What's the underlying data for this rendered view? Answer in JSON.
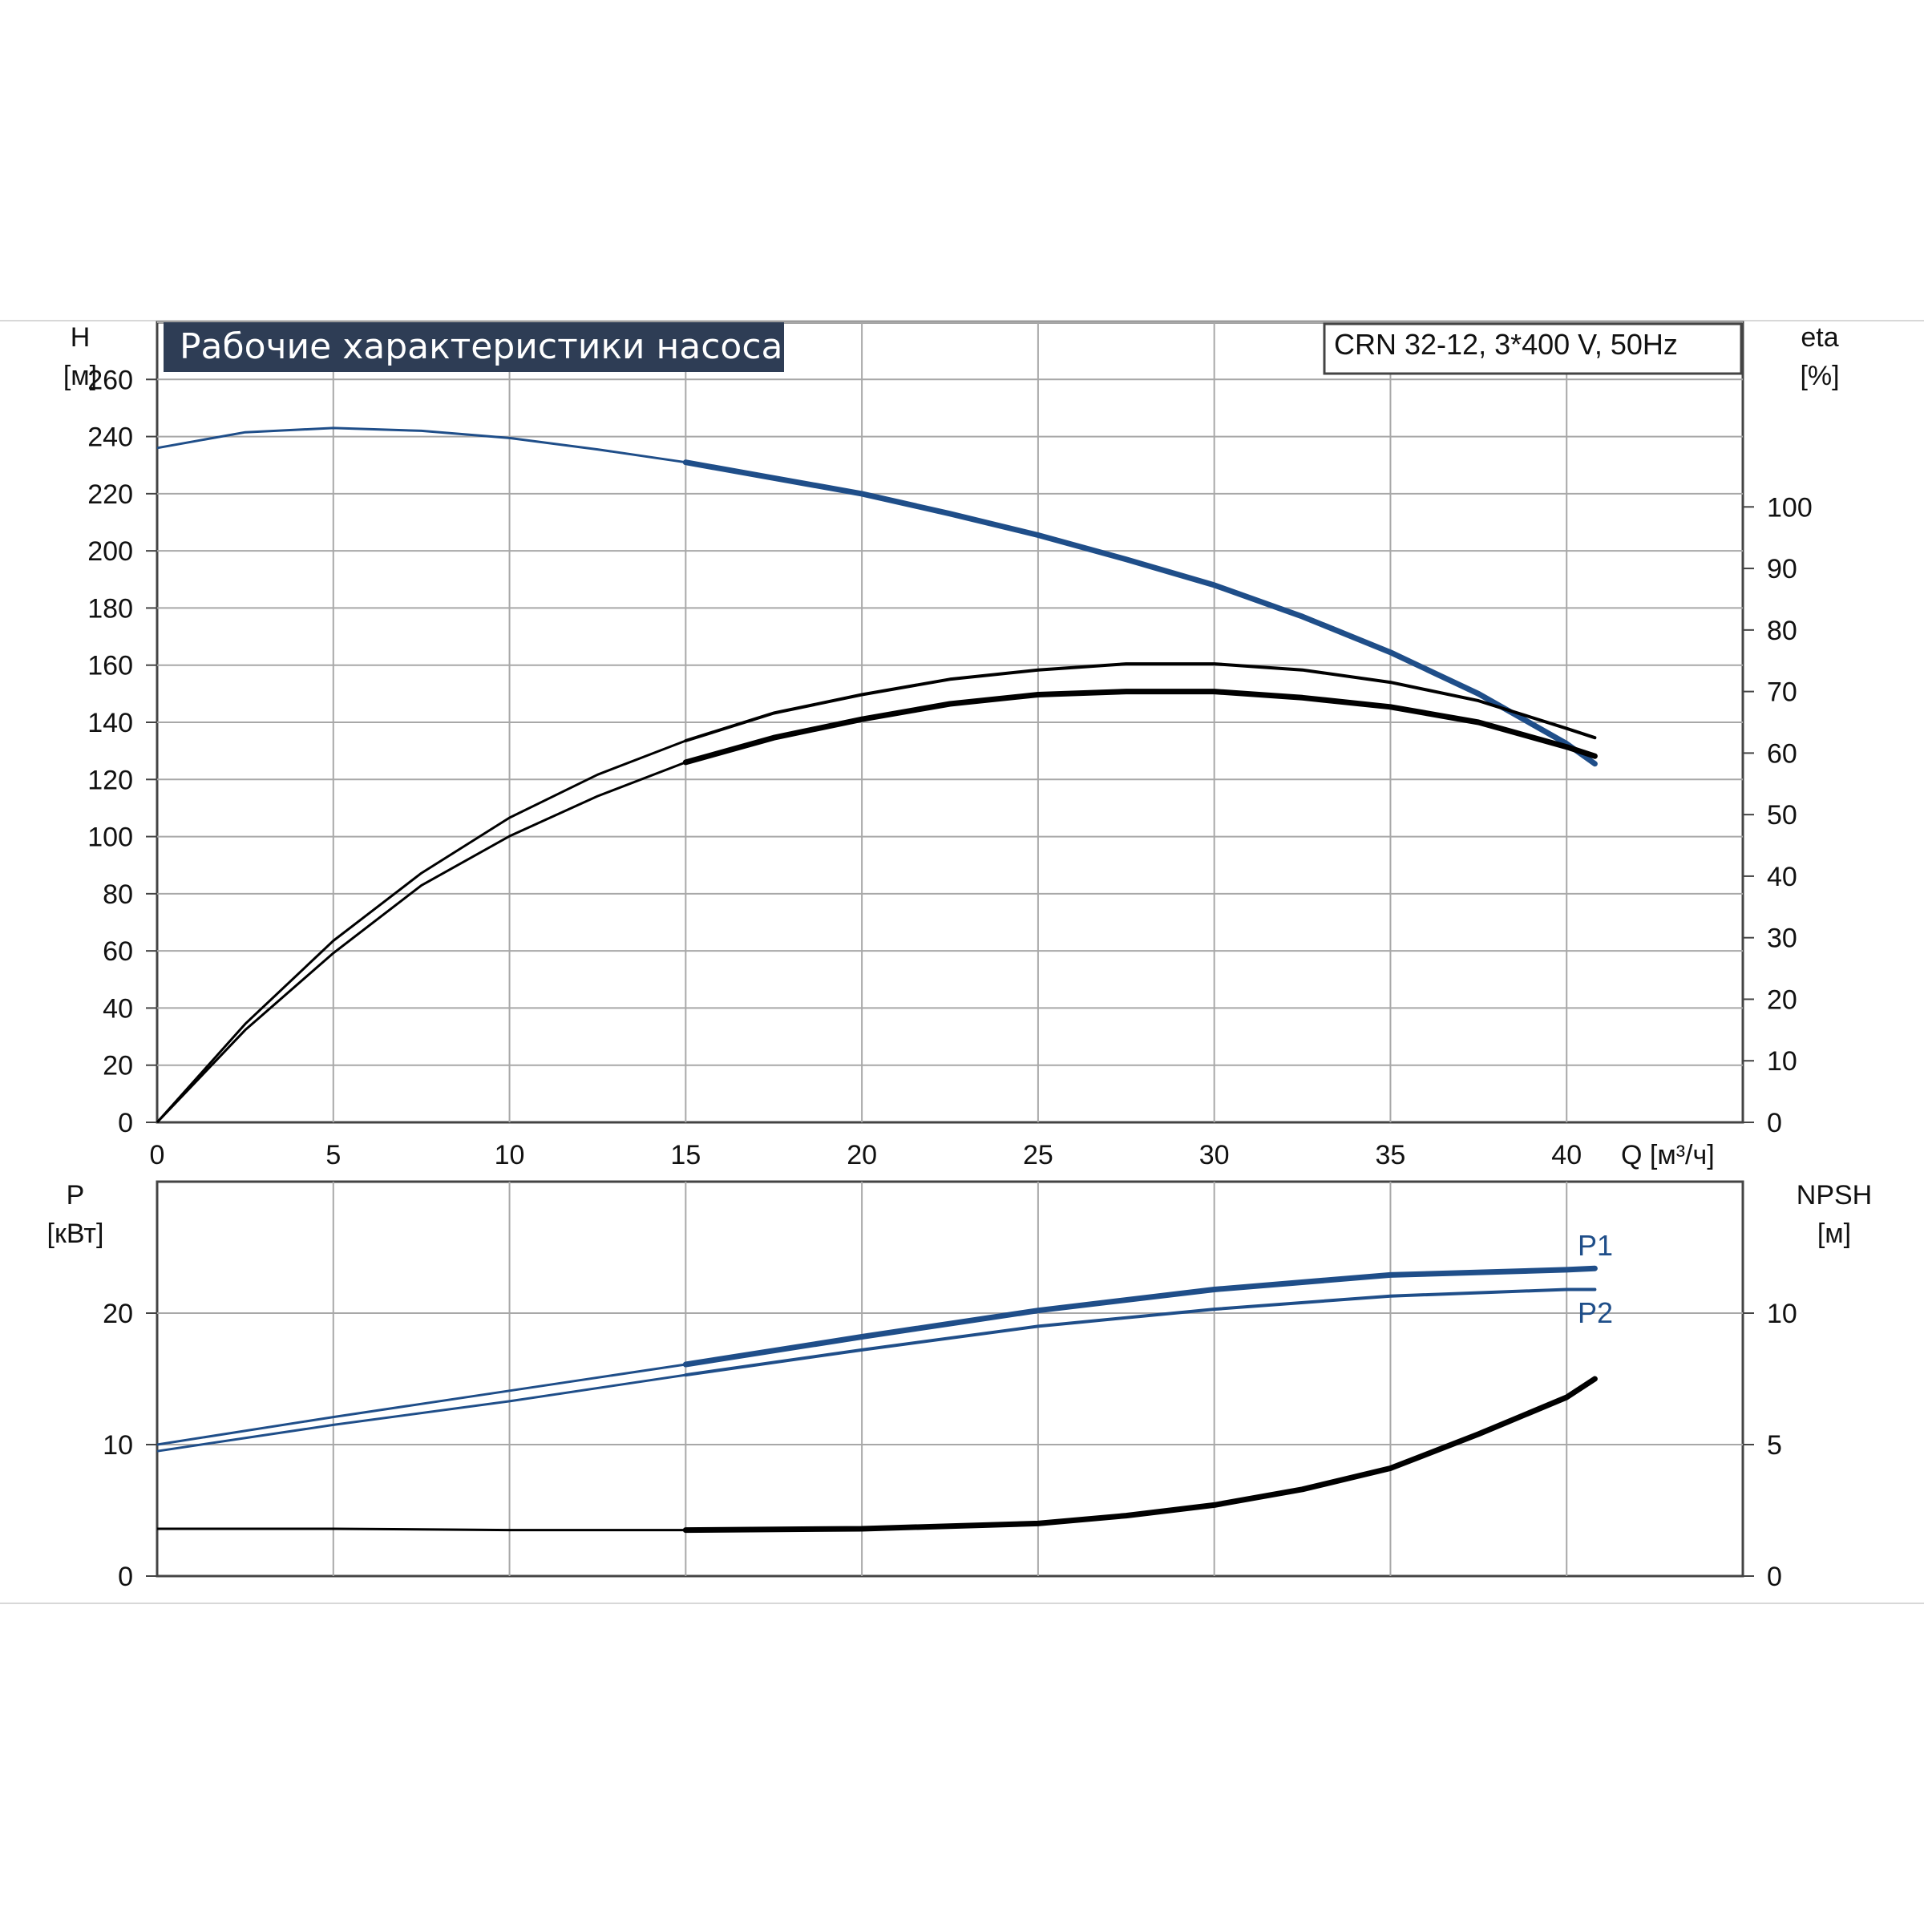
{
  "chart_data": [
    {
      "type": "line",
      "title": "Рабочие характеристики насоса",
      "subtitle": "CRN 32-12, 3*400 V, 50Hz",
      "xlabel": "Q [м³/ч]",
      "ylabel_line1": "H",
      "ylabel_line2": "[м]",
      "y2label_line1": "eta",
      "y2label_line2": "[%]",
      "xlim": [
        0,
        45
      ],
      "ylim": [
        0,
        280
      ],
      "y2lim": [
        0,
        130
      ],
      "grid": true,
      "x_ticks": [
        "0",
        "5",
        "10",
        "15",
        "20",
        "25",
        "30",
        "35",
        "40"
      ],
      "y_ticks": [
        "0",
        "20",
        "40",
        "60",
        "80",
        "100",
        "120",
        "140",
        "160",
        "180",
        "200",
        "220",
        "240",
        "260"
      ],
      "y2_ticks": [
        "0",
        "10",
        "20",
        "30",
        "40",
        "50",
        "60",
        "70",
        "80",
        "90",
        "100"
      ],
      "colors": {
        "head": "#1f4e89",
        "eta": "#000000"
      },
      "series": [
        {
          "axis": "left",
          "color": "#1f4e89",
          "x": [
            0,
            2.5,
            5,
            7.5,
            10,
            12.5,
            15,
            17.5,
            20,
            22.5,
            25,
            27.5,
            30,
            32.5,
            35,
            37.5,
            40,
            40.8
          ],
          "y": [
            236,
            241.5,
            243,
            242,
            239.5,
            235.5,
            231,
            225.5,
            220,
            213,
            205.5,
            197,
            188,
            177,
            164.5,
            150,
            132.5,
            125.5
          ]
        },
        {
          "axis": "right",
          "color": "#000000",
          "x": [
            0,
            2.5,
            5,
            7.5,
            10,
            12.5,
            15,
            17.5,
            20,
            22.5,
            25,
            27.5,
            30,
            32.5,
            35,
            37.5,
            40,
            40.8
          ],
          "y": [
            0,
            16,
            29.5,
            40.5,
            49.5,
            56.5,
            62,
            66.5,
            69.5,
            72,
            73.5,
            74.5,
            74.5,
            73.5,
            71.5,
            68.5,
            64,
            62.5
          ]
        },
        {
          "axis": "right",
          "color": "#000000",
          "x": [
            0,
            2.5,
            5,
            7.5,
            10,
            12.5,
            15,
            17.5,
            20,
            22.5,
            25,
            27.5,
            30,
            32.5,
            35,
            37.5,
            40,
            40.8
          ],
          "y": [
            0,
            15,
            27.5,
            38.5,
            46.5,
            53,
            58.5,
            62.5,
            65.5,
            68,
            69.5,
            70,
            70,
            69,
            67.5,
            65,
            61,
            59.5
          ]
        }
      ]
    },
    {
      "type": "line",
      "ylabel_line1": "P",
      "ylabel_line2": "[кВт]",
      "y2label_line1": "NPSH",
      "y2label_line2": "[м]",
      "xlim": [
        0,
        45
      ],
      "ylim": [
        0,
        30
      ],
      "y2lim": [
        0,
        15
      ],
      "grid": true,
      "y_ticks": [
        "0",
        "10",
        "20"
      ],
      "y2_ticks": [
        "0",
        "5",
        "10"
      ],
      "colors": {
        "power": "#1f4e89",
        "npsh": "#000000"
      },
      "series": [
        {
          "name": "P1",
          "axis": "left",
          "color": "#1f4e89",
          "x": [
            0,
            5,
            10,
            15,
            20,
            25,
            30,
            35,
            40,
            40.8
          ],
          "y": [
            10,
            12.1,
            14.1,
            16.1,
            18.2,
            20.2,
            21.8,
            22.9,
            23.3,
            23.4
          ]
        },
        {
          "name": "P2",
          "axis": "left",
          "color": "#1f4e89",
          "x": [
            0,
            5,
            10,
            15,
            20,
            25,
            30,
            35,
            40,
            40.8
          ],
          "y": [
            9.5,
            11.5,
            13.3,
            15.3,
            17.2,
            19,
            20.3,
            21.3,
            21.8,
            21.8
          ]
        },
        {
          "axis": "right",
          "color": "#000000",
          "x": [
            0,
            5,
            10,
            15,
            20,
            25,
            27.5,
            30,
            32.5,
            35,
            37.5,
            40,
            40.8
          ],
          "y": [
            1.8,
            1.8,
            1.75,
            1.75,
            1.8,
            2.0,
            2.3,
            2.7,
            3.3,
            4.1,
            5.4,
            6.8,
            7.5
          ]
        }
      ]
    }
  ]
}
